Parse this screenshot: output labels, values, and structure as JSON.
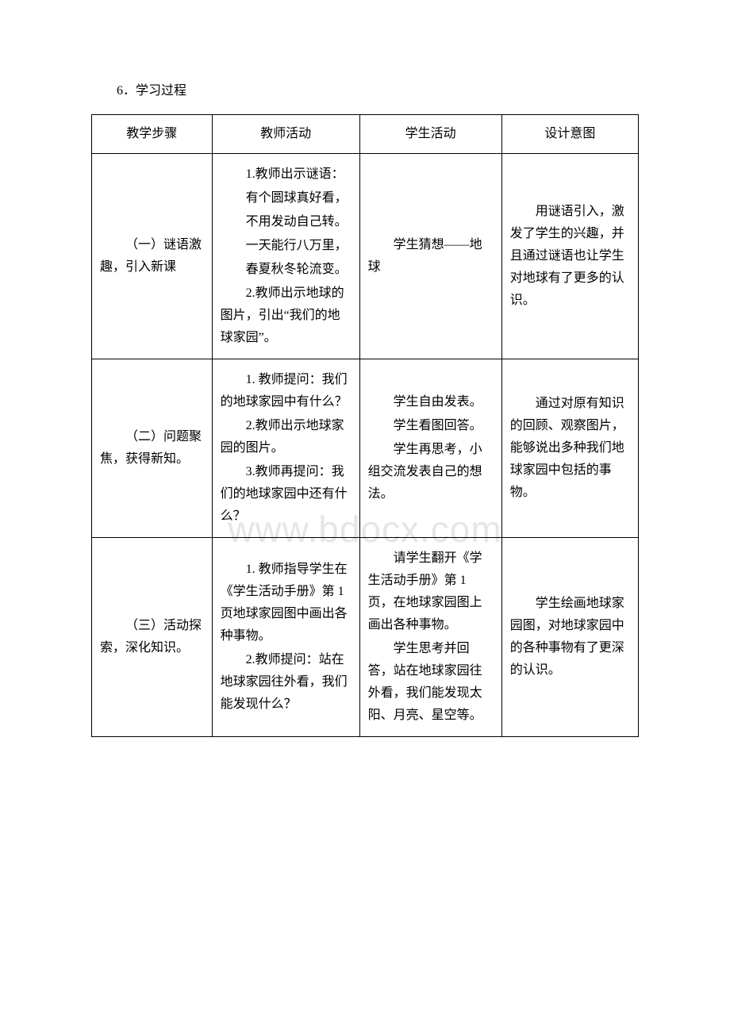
{
  "watermark": "www.bdocx.com",
  "section_heading": "6．学习过程",
  "headers": {
    "c1": "教学步骤",
    "c2": "教师活动",
    "c3": "学生活动",
    "c4": "设计意图"
  },
  "rows": [
    {
      "step": "（一）谜语激趣，引入新课",
      "teacher": [
        "1.教师出示谜语：",
        "有个圆球真好看，",
        "不用发动自己转。",
        "一天能行八万里，",
        "春夏秋冬轮流变。",
        "2.教师出示地球的图片，引出“我们的地球家园”。"
      ],
      "student": [
        "学生猜想——地球"
      ],
      "intent": [
        "用谜语引入，激发了学生的兴趣，并且通过谜语也让学生对地球有了更多的认识。"
      ]
    },
    {
      "step": "（二）问题聚焦，获得新知。",
      "teacher": [
        "1. 教师提问：我们的地球家园中有什么？",
        "2.教师出示地球家园的图片。",
        "3.教师再提问：我们的地球家园中还有什么？"
      ],
      "student": [
        "学生自由发表。",
        "学生看图回答。",
        "学生再思考，小组交流发表自己的想法。"
      ],
      "intent": [
        "通过对原有知识的回顾、观察图片，能够说出多种我们地球家园中包括的事物。"
      ]
    },
    {
      "step": "（三）活动探索，深化知识。",
      "teacher": [
        "1. 教师指导学生在《学生活动手册》第 1 页地球家园图中画出各种事物。",
        "2.教师提问：站在地球家园往外看，我们能发现什么？"
      ],
      "student": [
        "请学生翻开《学生活动手册》第 1 页，在地球家园图上画出各种事物。",
        "学生思考并回答，站在地球家园往外看，我们能发现太阳、月亮、星空等。"
      ],
      "intent": [
        "学生绘画地球家园图，对地球家园中的各种事物有了更深的认识。"
      ]
    }
  ]
}
